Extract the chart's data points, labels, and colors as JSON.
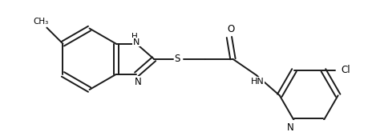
{
  "bg_color": "#ffffff",
  "line_color": "#1a1a1a",
  "line_width": 1.4,
  "figsize": [
    4.6,
    1.65
  ],
  "dpi": 100,
  "xlim": [
    0,
    460
  ],
  "ylim": [
    0,
    165
  ],
  "methyl_label": "CH₃",
  "S_label": "S",
  "O_label": "O",
  "N_label": "N",
  "HN_benz_label": "H\nN",
  "N_benz_label": "N",
  "HN_amide_label": "HN",
  "Cl_label": "Cl"
}
